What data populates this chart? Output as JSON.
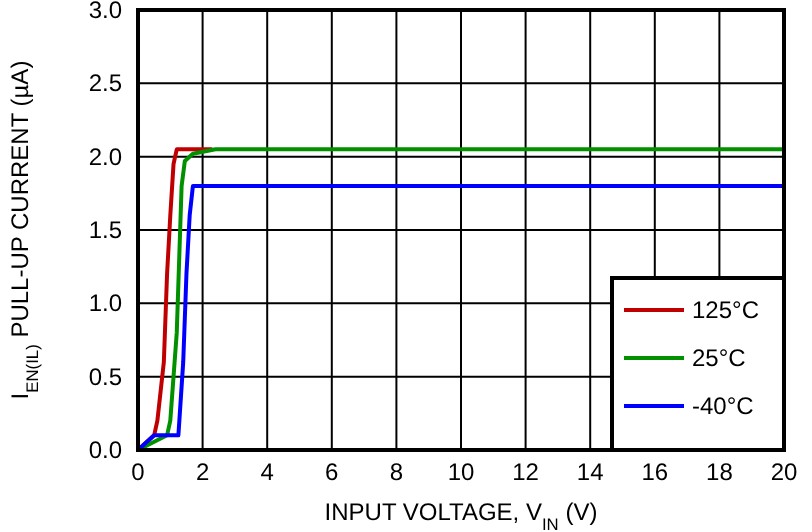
{
  "chart_data": {
    "type": "line",
    "xlabel": "INPUT VOLTAGE, V$_{IN}$ (V)",
    "ylabel": "I$_{EN(IL)}$ PULL-UP CURRENT (µA)",
    "xlim": [
      0,
      20
    ],
    "ylim": [
      0,
      3
    ],
    "xticks": [
      0,
      2,
      4,
      6,
      8,
      10,
      12,
      14,
      16,
      18,
      20
    ],
    "yticks": [
      {
        "value": 0,
        "label": "0.0"
      },
      {
        "value": 0.5,
        "label": "0.5"
      },
      {
        "value": 1,
        "label": "1.0"
      },
      {
        "value": 1.5,
        "label": "1.5"
      },
      {
        "value": 2,
        "label": "2.0"
      },
      {
        "value": 2.5,
        "label": "2.5"
      },
      {
        "value": 3,
        "label": "3.0"
      }
    ],
    "grid": true,
    "legend": "bottom right",
    "line_style": "solid",
    "series": [
      {
        "name": "125°C",
        "color": "#c00000",
        "x": [
          0,
          0.5,
          0.6,
          0.8,
          0.9,
          1.0,
          1.1,
          1.2,
          2.3
        ],
        "values": [
          0,
          0.1,
          0.2,
          0.6,
          1.2,
          1.6,
          1.95,
          2.05,
          2.05
        ]
      },
      {
        "name": "25°C",
        "color": "#009000",
        "x": [
          0,
          0.9,
          1.0,
          1.2,
          1.35,
          1.45,
          1.7,
          2.4,
          20
        ],
        "values": [
          0,
          0.1,
          0.2,
          0.8,
          1.8,
          1.97,
          2.02,
          2.05,
          2.05
        ]
      },
      {
        "name": "-40°C",
        "color": "#0000ff",
        "x": [
          0,
          0.5,
          1.25,
          1.4,
          1.5,
          1.6,
          1.7,
          20
        ],
        "values": [
          0,
          0.1,
          0.1,
          0.6,
          1.2,
          1.6,
          1.8,
          1.8
        ]
      }
    ]
  }
}
